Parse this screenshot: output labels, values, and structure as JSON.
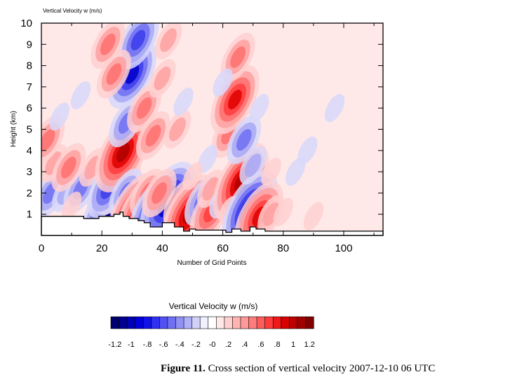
{
  "chart_data": {
    "type": "heatmap",
    "title": "Vertical Velocity w   (m/s)",
    "xlabel": "Number of Grid Points",
    "ylabel": "Height (km)",
    "xlim": [
      0,
      113
    ],
    "ylim": [
      0,
      10
    ],
    "x_ticks": [
      0,
      20,
      40,
      60,
      80,
      100
    ],
    "y_ticks": [
      1,
      2,
      3,
      4,
      5,
      6,
      7,
      8,
      9,
      10
    ],
    "grid": false,
    "field_centers": [
      {
        "x": 3,
        "y": 2.0,
        "w": -0.7
      },
      {
        "x": 8,
        "y": 2.0,
        "w": -0.4
      },
      {
        "x": 13,
        "y": 2.2,
        "w": -0.6
      },
      {
        "x": 10,
        "y": 1.4,
        "w": 0.3
      },
      {
        "x": 4,
        "y": 3.4,
        "w": 0.4
      },
      {
        "x": 9,
        "y": 3.2,
        "w": 0.5
      },
      {
        "x": 17,
        "y": 3.2,
        "w": 0.4
      },
      {
        "x": 2,
        "y": 4.5,
        "w": 0.5
      },
      {
        "x": 6,
        "y": 5.6,
        "w": -0.3
      },
      {
        "x": 13,
        "y": 6.6,
        "w": -0.3
      },
      {
        "x": 22,
        "y": 1.0,
        "w": -1.2
      },
      {
        "x": 25,
        "y": 2.6,
        "w": 1.0
      },
      {
        "x": 22,
        "y": 2.2,
        "w": -0.8
      },
      {
        "x": 27,
        "y": 3.9,
        "w": 1.2
      },
      {
        "x": 28,
        "y": 2.0,
        "w": -0.7
      },
      {
        "x": 31,
        "y": 1.1,
        "w": 1.2
      },
      {
        "x": 34,
        "y": 1.1,
        "w": 1.2
      },
      {
        "x": 35,
        "y": 2.0,
        "w": 0.6
      },
      {
        "x": 37,
        "y": 1.1,
        "w": -1.0
      },
      {
        "x": 42,
        "y": 1.6,
        "w": -1.2
      },
      {
        "x": 39,
        "y": 2.0,
        "w": 0.6
      },
      {
        "x": 46,
        "y": 1.5,
        "w": 0.6
      },
      {
        "x": 49,
        "y": 1.0,
        "w": 1.2
      },
      {
        "x": 53,
        "y": 1.6,
        "w": -0.5
      },
      {
        "x": 56,
        "y": 1.1,
        "w": 0.8
      },
      {
        "x": 56,
        "y": 2.2,
        "w": 0.4
      },
      {
        "x": 60,
        "y": 1.7,
        "w": -0.4
      },
      {
        "x": 66,
        "y": 2.5,
        "w": 1.2
      },
      {
        "x": 62,
        "y": 1.2,
        "w": 0.3
      },
      {
        "x": 69,
        "y": 1.2,
        "w": -1.2
      },
      {
        "x": 72,
        "y": 0.9,
        "w": 1.0
      },
      {
        "x": 76,
        "y": 1.0,
        "w": 0.4
      },
      {
        "x": 80,
        "y": 1.1,
        "w": 0.3
      },
      {
        "x": 90,
        "y": 0.9,
        "w": 0.2
      },
      {
        "x": 30,
        "y": 7.6,
        "w": -1.0
      },
      {
        "x": 32,
        "y": 9.2,
        "w": -0.8
      },
      {
        "x": 28,
        "y": 5.3,
        "w": -0.6
      },
      {
        "x": 24,
        "y": 7.6,
        "w": 0.5
      },
      {
        "x": 22,
        "y": 9.0,
        "w": 0.5
      },
      {
        "x": 34,
        "y": 6.0,
        "w": 0.7
      },
      {
        "x": 37,
        "y": 4.7,
        "w": 0.5
      },
      {
        "x": 40,
        "y": 7.4,
        "w": 0.4
      },
      {
        "x": 42,
        "y": 9.2,
        "w": 0.4
      },
      {
        "x": 45,
        "y": 5.0,
        "w": 0.4
      },
      {
        "x": 47,
        "y": 6.3,
        "w": -0.3
      },
      {
        "x": 62,
        "y": 4.8,
        "w": 0.5
      },
      {
        "x": 64,
        "y": 6.4,
        "w": 1.0
      },
      {
        "x": 65,
        "y": 8.4,
        "w": 0.6
      },
      {
        "x": 60,
        "y": 7.2,
        "w": -0.3
      },
      {
        "x": 67,
        "y": 4.5,
        "w": -0.5
      },
      {
        "x": 72,
        "y": 6.0,
        "w": -0.3
      },
      {
        "x": 70,
        "y": 3.3,
        "w": -0.4
      },
      {
        "x": 76,
        "y": 3.0,
        "w": 0.3
      },
      {
        "x": 84,
        "y": 3.0,
        "w": -0.2
      },
      {
        "x": 88,
        "y": 4.0,
        "w": -0.2
      },
      {
        "x": 97,
        "y": 6.0,
        "w": -0.15
      },
      {
        "x": 55,
        "y": 3.6,
        "w": -0.3
      },
      {
        "x": 50,
        "y": 2.8,
        "w": 0.3
      }
    ],
    "terrain": [
      {
        "x": 0,
        "h": 0.9
      },
      {
        "x": 14,
        "h": 0.9
      },
      {
        "x": 14,
        "h": 0.8
      },
      {
        "x": 19,
        "h": 0.8
      },
      {
        "x": 19,
        "h": 0.9
      },
      {
        "x": 24,
        "h": 0.9
      },
      {
        "x": 24,
        "h": 1.0
      },
      {
        "x": 26,
        "h": 1.0
      },
      {
        "x": 26,
        "h": 1.1
      },
      {
        "x": 27,
        "h": 1.1
      },
      {
        "x": 27,
        "h": 0.9
      },
      {
        "x": 29,
        "h": 0.9
      },
      {
        "x": 29,
        "h": 0.8
      },
      {
        "x": 32,
        "h": 0.8
      },
      {
        "x": 32,
        "h": 0.7
      },
      {
        "x": 34,
        "h": 0.7
      },
      {
        "x": 34,
        "h": 0.6
      },
      {
        "x": 36,
        "h": 0.6
      },
      {
        "x": 36,
        "h": 0.4
      },
      {
        "x": 40,
        "h": 0.4
      },
      {
        "x": 40,
        "h": 0.6
      },
      {
        "x": 44,
        "h": 0.6
      },
      {
        "x": 44,
        "h": 0.4
      },
      {
        "x": 47,
        "h": 0.4
      },
      {
        "x": 47,
        "h": 0.2
      },
      {
        "x": 49,
        "h": 0.2
      },
      {
        "x": 49,
        "h": 0.3
      },
      {
        "x": 51,
        "h": 0.3
      },
      {
        "x": 51,
        "h": 0.25
      },
      {
        "x": 61,
        "h": 0.25
      },
      {
        "x": 61,
        "h": 0.15
      },
      {
        "x": 63,
        "h": 0.15
      },
      {
        "x": 63,
        "h": 0.3
      },
      {
        "x": 66,
        "h": 0.3
      },
      {
        "x": 66,
        "h": 0.2
      },
      {
        "x": 69,
        "h": 0.2
      },
      {
        "x": 69,
        "h": 0.4
      },
      {
        "x": 71,
        "h": 0.4
      },
      {
        "x": 71,
        "h": 0.3
      },
      {
        "x": 74,
        "h": 0.3
      },
      {
        "x": 74,
        "h": 0.2
      },
      {
        "x": 113,
        "h": 0.2
      }
    ]
  },
  "colorbar": {
    "title": "Vertical Velocity w  (m/s)",
    "tick_labels": [
      "-1.2",
      "-1",
      "-.8",
      "-.6",
      "-.4",
      "-.2",
      "-0",
      ".2",
      ".4",
      ".6",
      ".8",
      "1",
      "1.2"
    ],
    "colors": [
      "#00006e",
      "#000090",
      "#0000b4",
      "#0000d8",
      "#1010e8",
      "#3030f0",
      "#5050f4",
      "#7070f4",
      "#9090f6",
      "#b0b0f8",
      "#d0d0fa",
      "#f0f0fe",
      "#ffffff",
      "#ffe8e8",
      "#ffd0d0",
      "#ffb4b4",
      "#ff9898",
      "#ff7c7c",
      "#ff5c5c",
      "#ff3c3c",
      "#f01818",
      "#d80000",
      "#bc0000",
      "#a00000",
      "#800000"
    ]
  },
  "caption": {
    "label": "Figure 11.",
    "text": " Cross section of vertical velocity 2007-12-10 06 UTC"
  }
}
